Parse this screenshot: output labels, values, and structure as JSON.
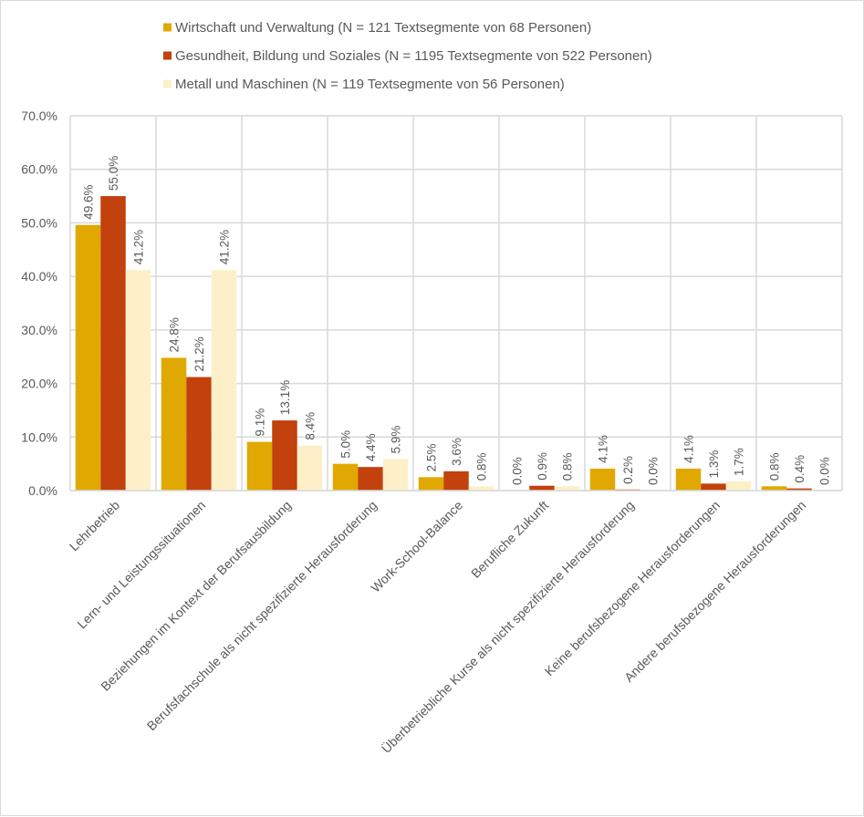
{
  "chart_data": {
    "type": "bar",
    "title": "",
    "xlabel": "",
    "ylabel": "",
    "ylim": [
      0,
      70
    ],
    "yticks": [
      "0.0%",
      "10.0%",
      "20.0%",
      "30.0%",
      "40.0%",
      "50.0%",
      "60.0%",
      "70.0%"
    ],
    "grid": true,
    "legend_position": "top",
    "categories": [
      "Lehrbetrieb",
      "Lern- und Leistungssituationen",
      "Beziehungen im Kontext der Berufsausbildung",
      "Berufsfachschule als nicht spezifizierte Herausforderung",
      "Work-School-Balance",
      "Berufliche Zukunft",
      "Überbetriebliche Kurse als nicht spezifizierte Herausforderung",
      "Keine berufsbezogene Herausforderungen",
      "Andere berufsbezogene Herausforderungen"
    ],
    "series": [
      {
        "name": "Wirtschaft und Verwaltung (N = 121 Textsegmente von 68 Personen)",
        "color": "#e0a800",
        "values": [
          49.6,
          24.8,
          9.1,
          5.0,
          2.5,
          0.0,
          4.1,
          4.1,
          0.8
        ],
        "labels": [
          "49.6%",
          "24.8%",
          "9.1%",
          "5.0%",
          "2.5%",
          "0.0%",
          "4.1%",
          "4.1%",
          "0.8%"
        ]
      },
      {
        "name": "Gesundheit, Bildung und Soziales (N = 1195 Textsegmente von 522 Personen)",
        "color": "#c2410c",
        "values": [
          55.0,
          21.2,
          13.1,
          4.4,
          3.6,
          0.9,
          0.2,
          1.3,
          0.4
        ],
        "labels": [
          "55.0%",
          "21.2%",
          "13.1%",
          "4.4%",
          "3.6%",
          "0.9%",
          "0.2%",
          "1.3%",
          "0.4%"
        ]
      },
      {
        "name": "Metall und Maschinen (N = 119 Textsegmente von 56 Personen)",
        "color": "#fdf0c8",
        "values": [
          41.2,
          41.2,
          8.4,
          5.9,
          0.8,
          0.8,
          0.0,
          1.7,
          0.0
        ],
        "labels": [
          "41.2%",
          "41.2%",
          "8.4%",
          "5.9%",
          "0.8%",
          "0.8%",
          "0.0%",
          "1.7%",
          "0.0%"
        ]
      }
    ]
  }
}
